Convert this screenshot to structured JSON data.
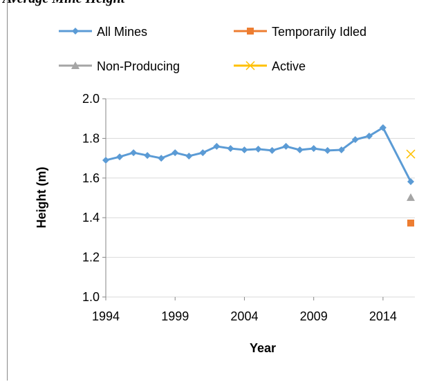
{
  "chart_data": {
    "type": "line",
    "title": "Average Mine Height",
    "x_label": "Year",
    "y_label": "Height (m)",
    "xlim": [
      1994,
      2016
    ],
    "xticks": [
      1994,
      1999,
      2004,
      2009,
      2014
    ],
    "ylim": [
      1.0,
      2.0
    ],
    "yticks": [
      {
        "value": 1.0,
        "label": "1.0"
      },
      {
        "value": 1.2,
        "label": "1.2"
      },
      {
        "value": 1.4,
        "label": "1.4"
      },
      {
        "value": 1.6,
        "label": "1.6"
      },
      {
        "value": 1.8,
        "label": "1.8"
      },
      {
        "value": 2.0,
        "label": "2.0"
      }
    ],
    "grid": true,
    "legend": "top",
    "series": [
      {
        "name": "All Mines",
        "color": "#5b9bd5",
        "marker": "diamond",
        "x": [
          1994,
          1995,
          1996,
          1997,
          1998,
          1999,
          2000,
          2001,
          2002,
          2003,
          2004,
          2005,
          2006,
          2007,
          2008,
          2009,
          2010,
          2011,
          2012,
          2013,
          2014,
          2016
        ],
        "values": [
          1.69,
          1.707,
          1.728,
          1.714,
          1.7,
          1.728,
          1.711,
          1.728,
          1.76,
          1.749,
          1.742,
          1.746,
          1.739,
          1.76,
          1.742,
          1.749,
          1.739,
          1.742,
          1.794,
          1.812,
          1.854,
          1.582
        ]
      },
      {
        "name": "Temporarily Idled",
        "color": "#ed7d31",
        "marker": "square",
        "x": [
          2016
        ],
        "values": [
          1.373
        ]
      },
      {
        "name": "Non-Producing",
        "color": "#a5a5a5",
        "marker": "triangle",
        "x": [
          2016
        ],
        "values": [
          1.502
        ]
      },
      {
        "name": "Active",
        "color": "#ffc000",
        "marker": "x",
        "x": [
          2016
        ],
        "values": [
          1.721
        ]
      }
    ]
  }
}
